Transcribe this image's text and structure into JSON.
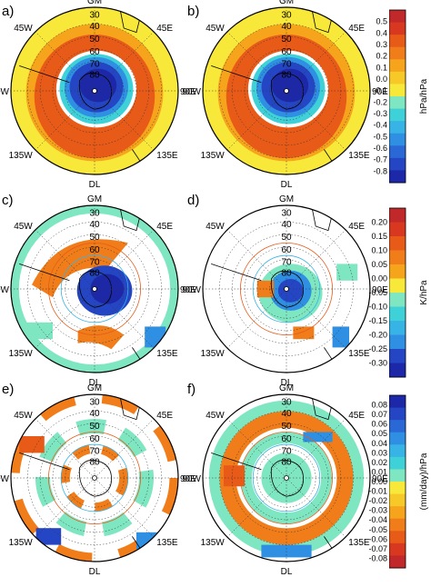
{
  "panels": [
    {
      "label": "a)"
    },
    {
      "label": "b)"
    },
    {
      "label": "c)"
    },
    {
      "label": "d)"
    },
    {
      "label": "e)"
    },
    {
      "label": "f)"
    }
  ],
  "map_labels": {
    "top": "GM",
    "bottom": "DL",
    "left": "90W",
    "right": "90E",
    "upper_left": "45W",
    "upper_right": "45E",
    "lower_left": "135W",
    "lower_right": "135E",
    "lat_rings": [
      "30",
      "40",
      "50",
      "60",
      "70",
      "80"
    ]
  },
  "colorbars": [
    {
      "unit": "hPa/hPa",
      "ticks": [
        "0.5",
        "0.4",
        "0.3",
        "0.2",
        "0.1",
        "0.0",
        "-0.1",
        "-0.2",
        "-0.3",
        "-0.4",
        "-0.5",
        "-0.6",
        "-0.7",
        "-0.8"
      ],
      "colors": [
        "#c0282a",
        "#d8381f",
        "#e85a18",
        "#f07d1a",
        "#f5a41c",
        "#f6c828",
        "#f8e83a",
        "#7fe6c2",
        "#3fd1d8",
        "#38b3e6",
        "#2f8fe3",
        "#2a68d6",
        "#2446c4",
        "#1c28a8"
      ]
    },
    {
      "unit": "K/hPa",
      "ticks": [
        "0.20",
        "0.15",
        "0.10",
        "0.05",
        "0.00",
        "-0.05",
        "-0.10",
        "-0.15",
        "-0.20",
        "-0.25",
        "-0.30"
      ],
      "colors": [
        "#c0282a",
        "#d8381f",
        "#e85a18",
        "#f07d1a",
        "#f5a41c",
        "#f8e83a",
        "#7fe6c2",
        "#3fd1d8",
        "#38b3e6",
        "#2f8fe3",
        "#2446c4",
        "#1c28a8"
      ]
    },
    {
      "unit": "(mm/day)/hPa",
      "ticks": [
        "0.08",
        "0.07",
        "0.06",
        "0.05",
        "0.04",
        "0.03",
        "0.02",
        "0.01",
        "0.00",
        "-0.01",
        "-0.02",
        "-0.03",
        "-0.04",
        "-0.05",
        "-0.06",
        "-0.07",
        "-0.08"
      ],
      "colors": [
        "#1c28a8",
        "#2446c4",
        "#2a68d6",
        "#2f8fe3",
        "#38b3e6",
        "#3fd1d8",
        "#7fe6c2",
        "#f8e83a",
        "#f6c828",
        "#f5a41c",
        "#f07d1a",
        "#e85a18",
        "#d8381f",
        "#c0282a"
      ]
    }
  ]
}
